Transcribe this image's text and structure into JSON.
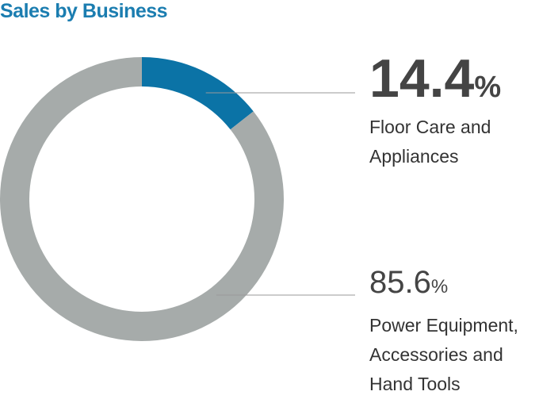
{
  "chart_data": {
    "type": "pie",
    "donut": true,
    "title": "Sales by Business",
    "categories": [
      "Floor Care and Appliances",
      "Power Equipment, Accessories and Hand Tools"
    ],
    "values": [
      14.4,
      85.6
    ],
    "value_labels": [
      "14.4%",
      "85.6%"
    ],
    "colors": [
      "#0b73a6",
      "#a6abaa"
    ]
  }
}
